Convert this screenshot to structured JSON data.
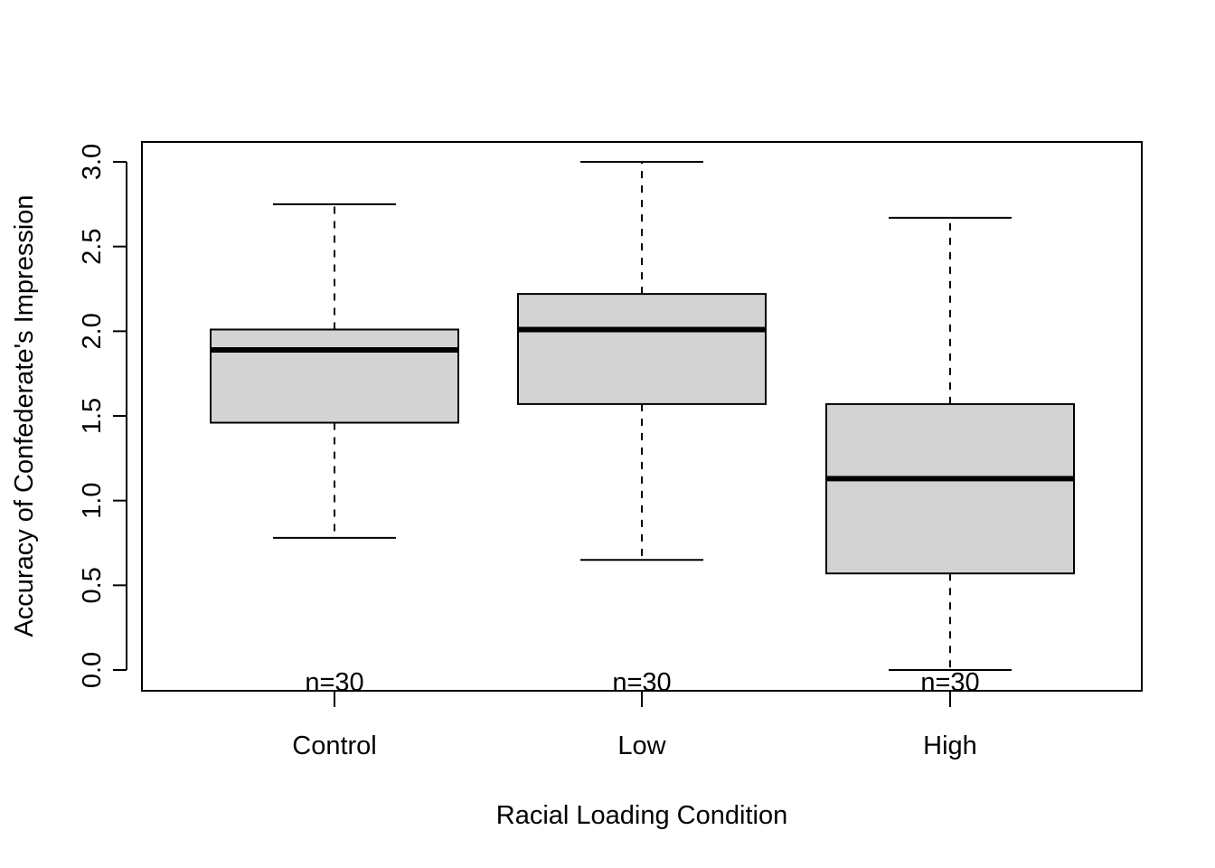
{
  "chart_data": {
    "type": "box",
    "title": "",
    "xlabel": "Racial Loading Condition",
    "ylabel": "Accuracy of Confederate's Impression",
    "ylim": [
      -0.12,
      3.12
    ],
    "yticks": [
      0.0,
      0.5,
      1.0,
      1.5,
      2.0,
      2.5,
      3.0
    ],
    "ytick_labels": [
      "0.0",
      "0.5",
      "1.0",
      "1.5",
      "2.0",
      "2.5",
      "3.0"
    ],
    "categories": [
      "Control",
      "Low",
      "High"
    ],
    "boxes": [
      {
        "category": "Control",
        "whisker_low": 0.78,
        "q1": 1.46,
        "median": 1.89,
        "q3": 2.01,
        "whisker_high": 2.75,
        "n_label": "n=30"
      },
      {
        "category": "Low",
        "whisker_low": 0.65,
        "q1": 1.57,
        "median": 2.01,
        "q3": 2.22,
        "whisker_high": 3.0,
        "n_label": "n=30"
      },
      {
        "category": "High",
        "whisker_low": 0.0,
        "q1": 0.57,
        "median": 1.13,
        "q3": 1.57,
        "whisker_high": 2.67,
        "n_label": "n=30"
      }
    ],
    "box_fill": "#d3d3d3",
    "line_color": "#000000",
    "grid": false,
    "legend": "none"
  }
}
